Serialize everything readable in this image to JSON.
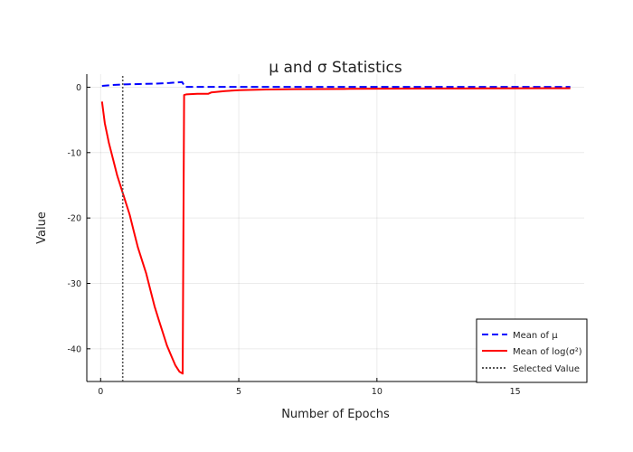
{
  "chart_data": {
    "type": "line",
    "title": "μ and σ Statistics",
    "xlabel": "Number of Epochs",
    "ylabel": "Value",
    "xlim": [
      -0.5,
      17.5
    ],
    "ylim": [
      -45,
      2
    ],
    "x_ticks": [
      0,
      5,
      10,
      15
    ],
    "y_ticks": [
      0,
      -10,
      -20,
      -30,
      -40
    ],
    "grid": true,
    "legend_position": "bottom-right",
    "series": [
      {
        "name": "Mean of μ",
        "color": "#0000ff",
        "style": "dashed",
        "x": [
          0.05,
          0.5,
          1.0,
          1.5,
          2.0,
          2.5,
          2.95,
          3.05,
          4.0,
          6.0,
          8.0,
          10.0,
          12.0,
          14.0,
          16.0,
          17.0
        ],
        "values": [
          0.2,
          0.35,
          0.45,
          0.5,
          0.55,
          0.65,
          0.8,
          0.05,
          0.05,
          0.05,
          0.05,
          0.05,
          0.05,
          0.05,
          0.05,
          0.05
        ]
      },
      {
        "name": "Mean of log(σ²)",
        "color": "#ff0000",
        "style": "solid",
        "x": [
          0.05,
          0.15,
          0.3,
          0.45,
          0.6,
          0.75,
          0.9,
          1.05,
          1.2,
          1.35,
          1.5,
          1.65,
          1.8,
          1.95,
          2.1,
          2.25,
          2.4,
          2.55,
          2.7,
          2.85,
          2.97,
          3.02,
          3.1,
          3.5,
          3.9,
          4.0,
          4.5,
          5.0,
          6.0,
          7.0,
          8.0,
          9.0,
          10.0,
          12.0,
          14.0,
          16.0,
          17.0
        ],
        "values": [
          -2.2,
          -5.5,
          -8.5,
          -11.0,
          -13.5,
          -15.5,
          -17.5,
          -19.5,
          -22.0,
          -24.5,
          -26.5,
          -28.5,
          -31.0,
          -33.5,
          -35.5,
          -37.5,
          -39.5,
          -41.0,
          -42.5,
          -43.5,
          -43.8,
          -1.2,
          -1.1,
          -1.0,
          -1.0,
          -0.8,
          -0.6,
          -0.45,
          -0.35,
          -0.3,
          -0.28,
          -0.25,
          -0.22,
          -0.2,
          -0.18,
          -0.15,
          -0.15
        ]
      },
      {
        "name": "Selected Value",
        "color": "#555555",
        "style": "dotted",
        "x": [
          0.8,
          0.8
        ],
        "values": [
          -45,
          2
        ]
      }
    ]
  }
}
